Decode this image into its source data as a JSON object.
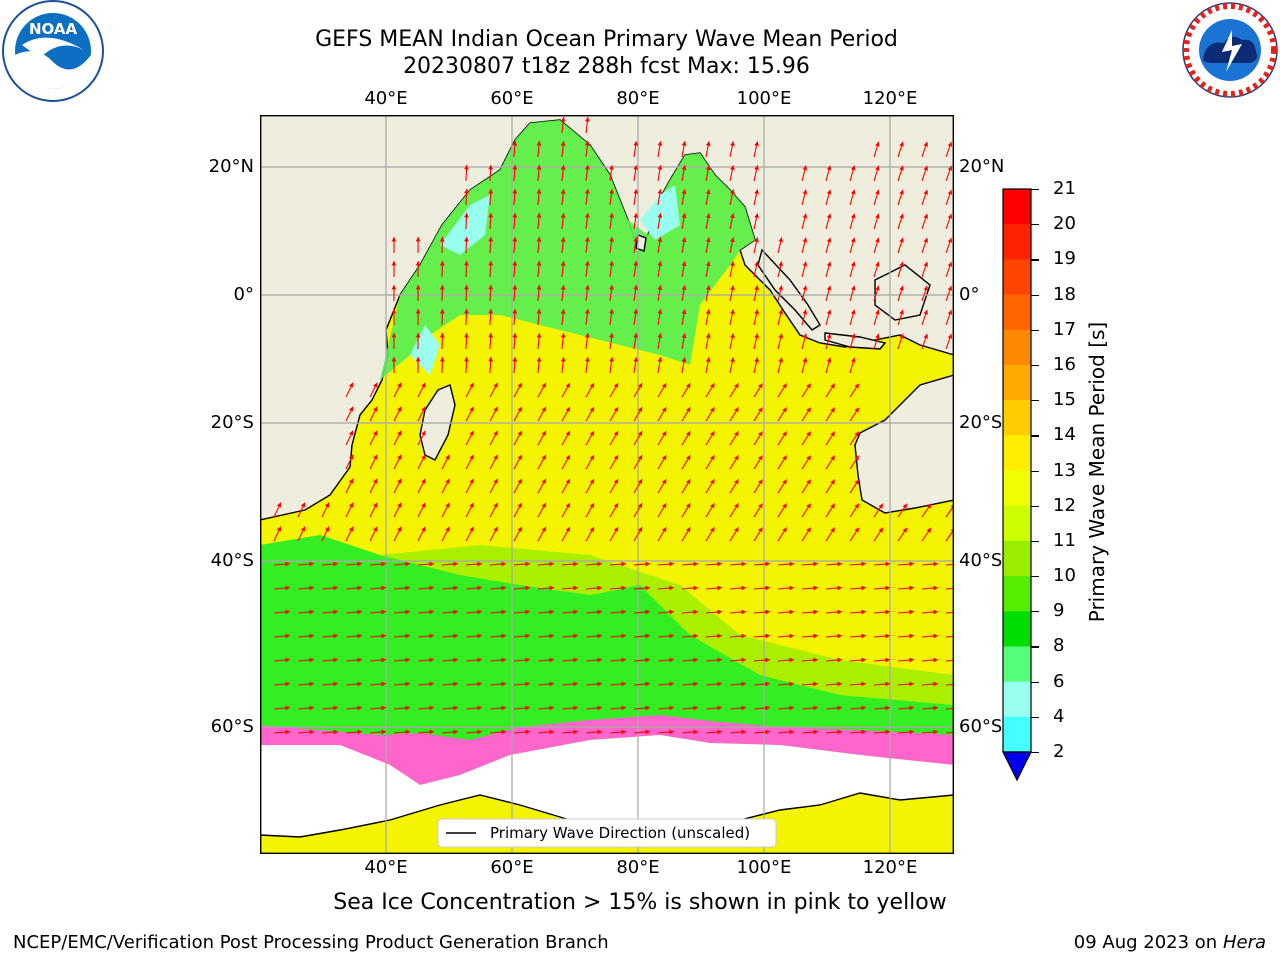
{
  "header": {
    "title_line1": "GEFS MEAN Indian Ocean Primary Wave Mean Period",
    "title_line2": "20230807 t18z 288h fcst   Max: 15.96"
  },
  "logos": {
    "left": {
      "icon": "noaa-logo",
      "text": "NOAA"
    },
    "right": {
      "icon": "national-weather-service-logo",
      "text": "NATIONAL WEATHER SERVICE"
    }
  },
  "map": {
    "lon_ticks": [
      {
        "value": 40,
        "label": "40°E"
      },
      {
        "value": 60,
        "label": "60°E"
      },
      {
        "value": 80,
        "label": "80°E"
      },
      {
        "value": 100,
        "label": "100°E"
      },
      {
        "value": 120,
        "label": "120°E"
      }
    ],
    "lat_ticks": [
      {
        "value": 20,
        "label": "20°N"
      },
      {
        "value": 0,
        "label": "0°"
      },
      {
        "value": -20,
        "label": "20°S"
      },
      {
        "value": -40,
        "label": "40°S"
      },
      {
        "value": -60,
        "label": "60°S"
      }
    ],
    "lon_range": [
      20,
      130
    ],
    "lat_range": [
      -78,
      28
    ],
    "land_color": "#efeddd",
    "ocean_colors": {
      "dominant_south": "#f4f400",
      "coastal_north": "#55ee66",
      "shallow_seas": "#44ffff",
      "sea_ice": "#ff66cc"
    },
    "arrow_color": "#ff0000",
    "grid": true
  },
  "legend": {
    "label": "Primary Wave Direction (unscaled)",
    "placement": "bottom-center"
  },
  "colorbar": {
    "label": "Primary Wave Mean Period [s]",
    "ticks": [
      "21",
      "20",
      "19",
      "18",
      "17",
      "16",
      "15",
      "14",
      "13",
      "12",
      "11",
      "10",
      "9",
      "8",
      "6",
      "4",
      "2"
    ],
    "colors": [
      "#ff0000",
      "#ff2200",
      "#ff4400",
      "#ff6600",
      "#ff8800",
      "#ffaa00",
      "#ffcc00",
      "#ffee00",
      "#eeff00",
      "#ccff00",
      "#99ee00",
      "#55ee00",
      "#00dd00",
      "#55ff77",
      "#99ffee",
      "#44ffff",
      "#00ffff",
      "#00eeff"
    ],
    "extend_color": "#0000ee",
    "low_colors": [
      "#00aaff"
    ]
  },
  "caption": "Sea Ice Concentration > 15% is shown in pink to yellow",
  "footer": {
    "left": "NCEP/EMC/Verification Post Processing Product Generation Branch",
    "right_date": "09 Aug 2023 on",
    "right_host": "Hera"
  }
}
